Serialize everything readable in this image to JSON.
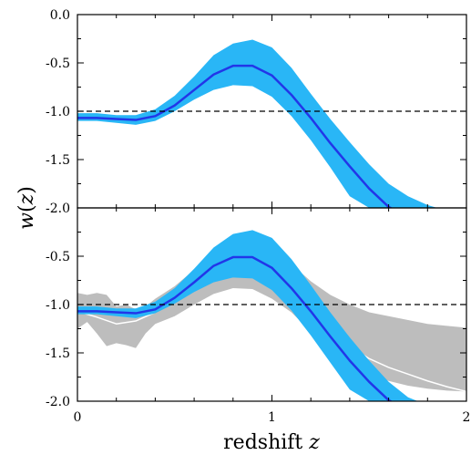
{
  "chart_data": [
    {
      "panel": "top",
      "type": "line",
      "title": "",
      "xlabel": "",
      "ylabel": "",
      "xlim": [
        0,
        2
      ],
      "ylim": [
        -2.0,
        0.0
      ],
      "grid": false,
      "xticks": [
        0,
        1,
        2
      ],
      "yticks": [
        0.0,
        -0.5,
        -1.0,
        -1.5,
        -2.0
      ],
      "ytick_labels": [
        "0.0",
        "-0.5",
        "-1.0",
        "-1.5",
        "-2.0"
      ],
      "reference_line": {
        "y": -1.0,
        "style": "dashed",
        "color": "#000000"
      },
      "series": [
        {
          "kind": "band",
          "color": "#29b6f6",
          "x": [
            0.0,
            0.1,
            0.2,
            0.3,
            0.4,
            0.5,
            0.6,
            0.7,
            0.8,
            0.9,
            1.0,
            1.1,
            1.2,
            1.3,
            1.4,
            1.5,
            1.6,
            1.7,
            1.8,
            1.85
          ],
          "lower": [
            -1.1,
            -1.1,
            -1.12,
            -1.14,
            -1.1,
            -1.0,
            -0.88,
            -0.78,
            -0.73,
            -0.74,
            -0.85,
            -1.05,
            -1.3,
            -1.58,
            -1.88,
            -2.0,
            -2.0,
            -2.0,
            -2.0,
            -2.0
          ],
          "upper": [
            -1.02,
            -1.02,
            -1.04,
            -1.04,
            -0.98,
            -0.84,
            -0.64,
            -0.42,
            -0.3,
            -0.26,
            -0.34,
            -0.55,
            -0.82,
            -1.08,
            -1.32,
            -1.55,
            -1.75,
            -1.88,
            -1.97,
            -2.0
          ]
        },
        {
          "kind": "line",
          "color": "#2236e8",
          "x": [
            0.0,
            0.1,
            0.2,
            0.3,
            0.4,
            0.5,
            0.6,
            0.7,
            0.8,
            0.9,
            1.0,
            1.1,
            1.2,
            1.3,
            1.4,
            1.5,
            1.6,
            1.61
          ],
          "y": [
            -1.07,
            -1.07,
            -1.08,
            -1.09,
            -1.05,
            -0.94,
            -0.78,
            -0.62,
            -0.53,
            -0.53,
            -0.63,
            -0.83,
            -1.07,
            -1.33,
            -1.57,
            -1.8,
            -1.99,
            -2.0
          ]
        }
      ]
    },
    {
      "panel": "bottom",
      "type": "line",
      "title": "",
      "xlabel": "redshift z",
      "ylabel": "w(z)",
      "xlim": [
        0,
        2
      ],
      "ylim": [
        -2.0,
        0.0
      ],
      "grid": false,
      "xticks": [
        0,
        1,
        2
      ],
      "xtick_labels": [
        "0",
        "1",
        "2"
      ],
      "yticks": [
        -0.5,
        -1.0,
        -1.5,
        -2.0
      ],
      "ytick_labels": [
        "-0.5",
        "-1.0",
        "-1.5",
        "-2.0"
      ],
      "reference_line": {
        "y": -1.0,
        "style": "dashed",
        "color": "#000000"
      },
      "series": [
        {
          "kind": "band",
          "color": "#bdbdbd",
          "x": [
            0.0,
            0.05,
            0.1,
            0.15,
            0.2,
            0.25,
            0.3,
            0.35,
            0.4,
            0.5,
            0.6,
            0.7,
            0.8,
            0.9,
            1.0,
            1.1,
            1.2,
            1.3,
            1.4,
            1.5,
            1.6,
            1.7,
            1.8,
            1.9,
            2.0
          ],
          "lower": [
            -1.25,
            -1.18,
            -1.3,
            -1.43,
            -1.4,
            -1.42,
            -1.45,
            -1.3,
            -1.2,
            -1.12,
            -1.0,
            -0.89,
            -0.83,
            -0.84,
            -0.94,
            -1.08,
            -1.28,
            -1.45,
            -1.62,
            -1.73,
            -1.79,
            -1.84,
            -1.87,
            -1.89,
            -1.9
          ],
          "upper": [
            -0.88,
            -0.9,
            -0.88,
            -0.9,
            -1.02,
            -1.0,
            -1.05,
            -1.02,
            -0.94,
            -0.81,
            -0.64,
            -0.47,
            -0.33,
            -0.38,
            -0.44,
            -0.58,
            -0.76,
            -0.9,
            -1.0,
            -1.08,
            -1.12,
            -1.16,
            -1.2,
            -1.22,
            -1.24
          ]
        },
        {
          "kind": "line",
          "color": "#ffffff",
          "x": [
            0.0,
            0.1,
            0.2,
            0.3,
            0.4,
            0.5,
            0.6,
            0.7,
            0.8,
            0.9,
            1.0,
            1.1,
            1.2,
            1.3,
            1.4,
            1.5,
            1.6,
            1.7,
            1.8,
            1.9,
            2.0
          ],
          "y": [
            -1.07,
            -1.13,
            -1.2,
            -1.17,
            -1.08,
            -0.93,
            -0.78,
            -0.66,
            -0.62,
            -0.64,
            -0.73,
            -0.9,
            -1.08,
            -1.26,
            -1.43,
            -1.56,
            -1.65,
            -1.72,
            -1.79,
            -1.85,
            -1.9
          ]
        },
        {
          "kind": "band",
          "color": "#29b6f6",
          "x": [
            0.0,
            0.1,
            0.2,
            0.3,
            0.4,
            0.5,
            0.6,
            0.7,
            0.8,
            0.9,
            1.0,
            1.1,
            1.2,
            1.3,
            1.4,
            1.5,
            1.6,
            1.7,
            1.75
          ],
          "lower": [
            -1.1,
            -1.1,
            -1.12,
            -1.14,
            -1.09,
            -0.99,
            -0.87,
            -0.77,
            -0.72,
            -0.73,
            -0.85,
            -1.06,
            -1.32,
            -1.6,
            -1.88,
            -2.0,
            -2.0,
            -2.0,
            -2.0
          ],
          "upper": [
            -1.02,
            -1.02,
            -1.04,
            -1.04,
            -0.97,
            -0.83,
            -0.63,
            -0.41,
            -0.27,
            -0.23,
            -0.31,
            -0.53,
            -0.8,
            -1.08,
            -1.34,
            -1.58,
            -1.8,
            -1.96,
            -2.0
          ]
        },
        {
          "kind": "line",
          "color": "#2236e8",
          "x": [
            0.0,
            0.1,
            0.2,
            0.3,
            0.4,
            0.5,
            0.6,
            0.7,
            0.8,
            0.9,
            1.0,
            1.1,
            1.2,
            1.3,
            1.4,
            1.5,
            1.6,
            1.61
          ],
          "y": [
            -1.07,
            -1.07,
            -1.08,
            -1.09,
            -1.05,
            -0.93,
            -0.77,
            -0.6,
            -0.51,
            -0.51,
            -0.62,
            -0.83,
            -1.07,
            -1.33,
            -1.58,
            -1.8,
            -1.99,
            -2.0
          ]
        }
      ]
    }
  ]
}
